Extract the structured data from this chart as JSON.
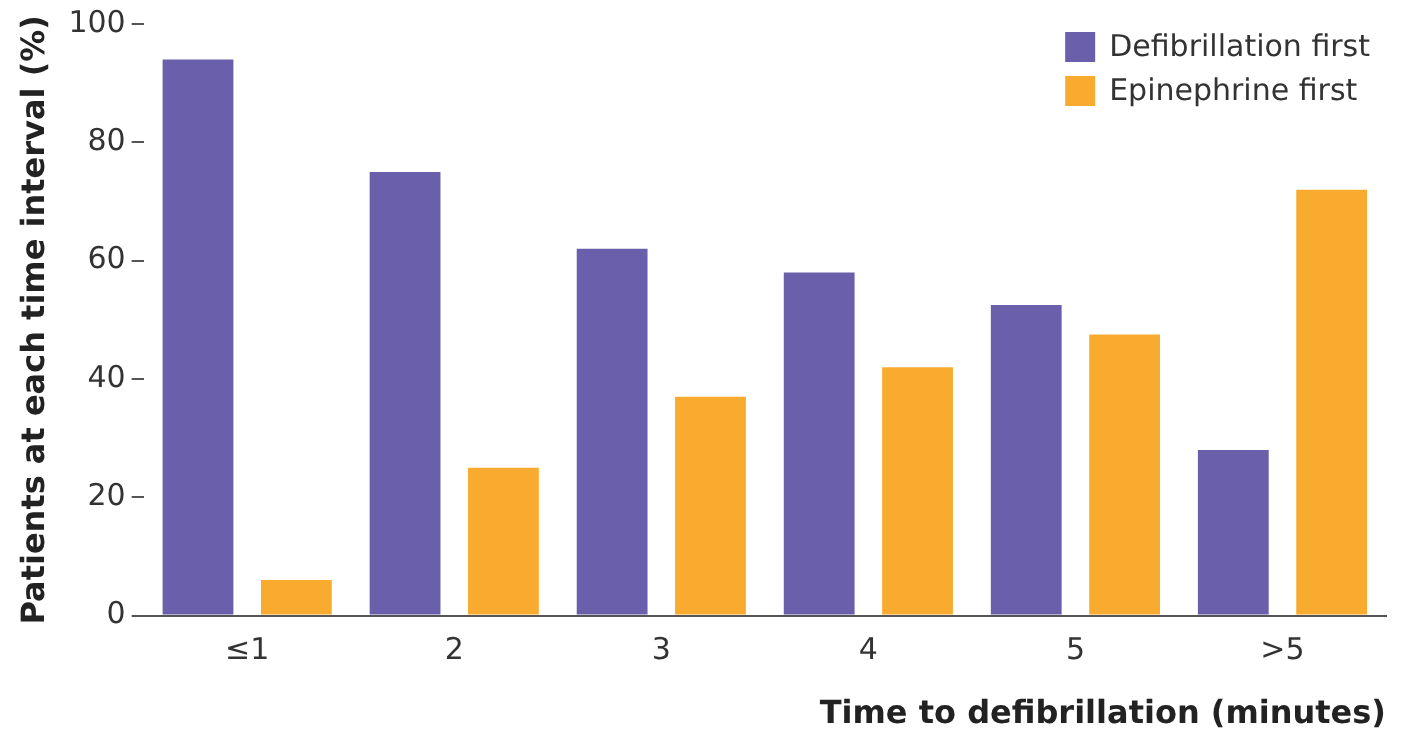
{
  "chart_data": {
    "type": "bar",
    "xlabel": "Time to defibrillation (minutes)",
    "ylabel": "Patients at each time interval (%)",
    "categories": [
      "≤1",
      "2",
      "3",
      "4",
      "5",
      ">5"
    ],
    "series": [
      {
        "name": "Defibrillation first",
        "color": "#6a5fab",
        "values": [
          94,
          75,
          62,
          58,
          52.5,
          28
        ]
      },
      {
        "name": "Epinephrine first",
        "color": "#f9ab30",
        "values": [
          6,
          25,
          37,
          42,
          47.5,
          72
        ]
      }
    ],
    "ylim": [
      0,
      100
    ],
    "yticks": [
      0,
      20,
      40,
      60,
      80,
      100
    ],
    "grid": false,
    "legend": "top right"
  }
}
